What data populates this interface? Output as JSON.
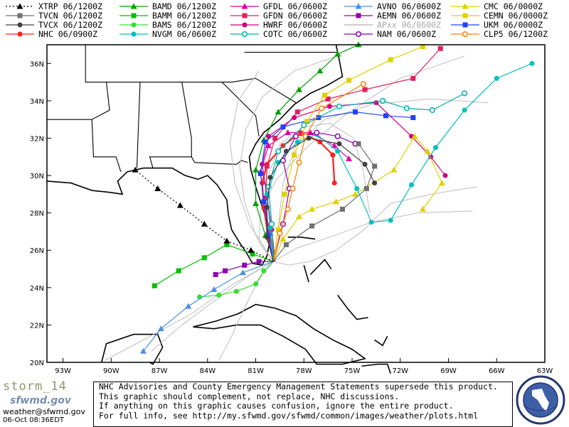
{
  "legend": [
    {
      "label": "XTRP 06/1200Z",
      "color": "#000000",
      "marker": "tri",
      "dotted": true
    },
    {
      "label": "BAMD 06/1200Z",
      "color": "#00a000",
      "marker": "tri"
    },
    {
      "label": "GFDL 06/0600Z",
      "color": "#e000a0",
      "marker": "tri"
    },
    {
      "label": "AVNO 06/0600Z",
      "color": "#4a90e2",
      "marker": "tri"
    },
    {
      "label": "CMC 06/0000Z",
      "color": "#e0d000",
      "marker": "tri"
    },
    {
      "label": "TVCN 06/1200Z",
      "color": "#707070",
      "marker": "sq"
    },
    {
      "label": "BAMM 06/1200Z",
      "color": "#00c000",
      "marker": "sq"
    },
    {
      "label": "GFDN 06/0600Z",
      "color": "#e02060",
      "marker": "sq"
    },
    {
      "label": "AEMN 06/0600Z",
      "color": "#9000b0",
      "marker": "sq"
    },
    {
      "label": "CEMN 06/0000Z",
      "color": "#e0d000",
      "marker": "sq"
    },
    {
      "label": "TVCX 06/1200Z",
      "color": "#404040",
      "marker": "circ"
    },
    {
      "label": "BAMS 06/1200Z",
      "color": "#30e030",
      "marker": "circ"
    },
    {
      "label": "HWRF 06/0600Z",
      "color": "#d00080",
      "marker": "circ"
    },
    {
      "label": "APxx 06/0600Z",
      "color": "#b0b0b0",
      "marker": "none"
    },
    {
      "label": "UKM 06/0000Z",
      "color": "#2040ff",
      "marker": "sq"
    },
    {
      "label": "NHC 06/0900Z",
      "color": "#ff2020",
      "marker": "circ"
    },
    {
      "label": "NVGM 06/0600Z",
      "color": "#00c0c0",
      "marker": "circ"
    },
    {
      "label": "COTC 06/0600Z",
      "color": "#00b0b0",
      "marker": "ocirc"
    },
    {
      "label": "NAM 06/0600Z",
      "color": "#9000b0",
      "marker": "ocirc"
    },
    {
      "label": "CLP5 06/1200Z",
      "color": "#ff8000",
      "marker": "ocirc"
    }
  ],
  "axes": {
    "lon_labels": [
      "93W",
      "90W",
      "87W",
      "84W",
      "81W",
      "78W",
      "75W",
      "72W",
      "69W",
      "66W",
      "63W"
    ],
    "lat_labels": [
      "36N",
      "34N",
      "32N",
      "30N",
      "28N",
      "26N",
      "24N",
      "22N",
      "20N"
    ]
  },
  "branding": {
    "name": "storm_14",
    "site": "sfwmd.gov",
    "email": "weather@sfwmd.gov",
    "timestamp": "06-Oct 08:36EDT"
  },
  "disclaimer": [
    "NHC Advisories and County Emergency Management Statements supersede this product.",
    "This graphic should complement, not replace, NHC discussions.",
    "If anything on this graphic causes confusion, ignore the entire product.",
    "For full info, see  http://my.sfwmd.gov/sfwmd/common/images/weather/plots.html"
  ],
  "tracks": [
    {
      "model": "NHC",
      "color": "#ff2020",
      "marker": "circ",
      "points": [
        [
          -79.9,
          25.4
        ],
        [
          -80.2,
          26.6
        ],
        [
          -80.5,
          28.3
        ],
        [
          -80.6,
          29.6
        ],
        [
          -80.3,
          30.6
        ],
        [
          -79.3,
          31.6
        ],
        [
          -78.2,
          32.3
        ],
        [
          -77.0,
          31.8
        ],
        [
          -76.2,
          31.1
        ],
        [
          -76.1,
          29.6
        ]
      ]
    },
    {
      "model": "BAMD",
      "color": "#00a000",
      "marker": "tri",
      "points": [
        [
          -79.8,
          25.4
        ],
        [
          -80.4,
          26.8
        ],
        [
          -81.0,
          28.5
        ],
        [
          -81.0,
          30.3
        ],
        [
          -80.5,
          31.9
        ],
        [
          -79.6,
          33.4
        ],
        [
          -78.3,
          34.6
        ],
        [
          -77.0,
          35.6
        ],
        [
          -75.9,
          36.5
        ],
        [
          -74.6,
          37.0
        ]
      ]
    },
    {
      "model": "BAMM",
      "color": "#00c000",
      "marker": "sq",
      "points": [
        [
          -79.9,
          25.4
        ],
        [
          -81.2,
          25.8
        ],
        [
          -82.8,
          26.3
        ],
        [
          -84.2,
          25.6
        ],
        [
          -85.8,
          24.9
        ],
        [
          -87.3,
          24.1
        ]
      ]
    },
    {
      "model": "BAMS",
      "color": "#30e030",
      "marker": "circ",
      "points": [
        [
          -79.9,
          25.4
        ],
        [
          -80.5,
          24.9
        ],
        [
          -81.0,
          24.2
        ],
        [
          -82.2,
          23.8
        ],
        [
          -83.3,
          23.6
        ],
        [
          -84.5,
          23.5
        ]
      ]
    },
    {
      "model": "GFDL",
      "color": "#e000a0",
      "marker": "tri",
      "points": [
        [
          -79.8,
          25.4
        ],
        [
          -80.1,
          26.9
        ],
        [
          -80.5,
          28.6
        ],
        [
          -80.7,
          30.2
        ],
        [
          -80.2,
          31.6
        ],
        [
          -79.0,
          32.3
        ],
        [
          -77.6,
          32.3
        ],
        [
          -76.1,
          31.6
        ],
        [
          -75.2,
          30.9
        ]
      ]
    },
    {
      "model": "GFDN",
      "color": "#e02060",
      "marker": "sq",
      "points": [
        [
          -79.8,
          25.4
        ],
        [
          -80.2,
          27.0
        ],
        [
          -80.4,
          28.8
        ],
        [
          -80.3,
          30.5
        ],
        [
          -79.8,
          32.0
        ],
        [
          -78.4,
          33.4
        ],
        [
          -76.5,
          34.1
        ],
        [
          -74.2,
          34.6
        ],
        [
          -71.2,
          35.2
        ],
        [
          -69.5,
          36.8
        ]
      ]
    },
    {
      "model": "HWRF",
      "color": "#d00080",
      "marker": "circ",
      "points": [
        [
          -79.8,
          25.4
        ],
        [
          -80.0,
          27.1
        ],
        [
          -80.3,
          28.9
        ],
        [
          -80.6,
          30.6
        ],
        [
          -80.2,
          32.1
        ],
        [
          -78.6,
          33.1
        ],
        [
          -76.4,
          33.7
        ],
        [
          -73.5,
          33.9
        ],
        [
          -71.3,
          32.1
        ],
        [
          -70.1,
          31.0
        ],
        [
          -69.2,
          30.0
        ]
      ]
    },
    {
      "model": "AVNO",
      "color": "#4a90e2",
      "marker": "tri",
      "points": [
        [
          -79.9,
          25.4
        ],
        [
          -81.8,
          24.8
        ],
        [
          -83.6,
          23.9
        ],
        [
          -85.2,
          23.0
        ],
        [
          -86.9,
          21.8
        ],
        [
          -88.0,
          20.6
        ]
      ]
    },
    {
      "model": "AEMN",
      "color": "#9000b0",
      "marker": "sq",
      "points": [
        [
          -79.9,
          25.4
        ],
        [
          -80.8,
          25.4
        ],
        [
          -81.7,
          25.2
        ],
        [
          -82.9,
          24.9
        ],
        [
          -83.5,
          24.7
        ]
      ]
    },
    {
      "model": "UKM",
      "color": "#2040ff",
      "marker": "sq",
      "points": [
        [
          -79.9,
          25.4
        ],
        [
          -80.2,
          26.8
        ],
        [
          -80.5,
          28.6
        ],
        [
          -80.7,
          30.1
        ],
        [
          -80.4,
          31.8
        ],
        [
          -79.3,
          32.6
        ],
        [
          -77.1,
          33.1
        ],
        [
          -74.8,
          33.4
        ],
        [
          -72.9,
          33.2
        ],
        [
          -71.2,
          33.1
        ]
      ]
    },
    {
      "model": "CMC",
      "color": "#e0d000",
      "marker": "tri",
      "points": [
        [
          -79.9,
          25.4
        ],
        [
          -79.3,
          26.6
        ],
        [
          -78.3,
          27.8
        ],
        [
          -77.5,
          28.2
        ],
        [
          -76.0,
          28.6
        ],
        [
          -74.8,
          29.0
        ],
        [
          -72.4,
          30.3
        ],
        [
          -71.1,
          32.1
        ],
        [
          -70.3,
          31.3
        ],
        [
          -69.4,
          29.6
        ],
        [
          -70.6,
          28.2
        ]
      ]
    },
    {
      "model": "CEMN",
      "color": "#e0d000",
      "marker": "sq",
      "points": [
        [
          -79.9,
          25.4
        ],
        [
          -79.6,
          27.1
        ],
        [
          -79.2,
          29.0
        ],
        [
          -78.6,
          31.1
        ],
        [
          -77.8,
          32.9
        ],
        [
          -76.7,
          34.3
        ],
        [
          -75.2,
          35.1
        ],
        [
          -72.6,
          36.2
        ],
        [
          -70.6,
          36.9
        ]
      ]
    },
    {
      "model": "NVGM",
      "color": "#00c0c0",
      "marker": "circ",
      "points": [
        [
          -79.9,
          25.4
        ],
        [
          -80.1,
          27.2
        ],
        [
          -80.3,
          29.0
        ],
        [
          -79.6,
          30.7
        ],
        [
          -78.4,
          31.8
        ],
        [
          -77.2,
          32.2
        ],
        [
          -75.9,
          31.3
        ],
        [
          -74.7,
          29.3
        ],
        [
          -73.8,
          27.5
        ],
        [
          -72.6,
          27.6
        ],
        [
          -71.3,
          29.5
        ],
        [
          -69.8,
          31.5
        ],
        [
          -68.0,
          33.5
        ],
        [
          -66.0,
          35.2
        ],
        [
          -63.8,
          36.0
        ]
      ]
    },
    {
      "model": "COTC",
      "color": "#00b0b0",
      "marker": "ocirc",
      "points": [
        [
          -79.9,
          25.4
        ],
        [
          -80.0,
          27.4
        ],
        [
          -80.2,
          29.4
        ],
        [
          -79.6,
          31.3
        ],
        [
          -78.0,
          32.7
        ],
        [
          -75.8,
          33.7
        ],
        [
          -73.1,
          34.0
        ],
        [
          -71.6,
          33.6
        ],
        [
          -70.0,
          33.5
        ],
        [
          -68.0,
          34.4
        ]
      ]
    },
    {
      "model": "NAM",
      "color": "#9000b0",
      "marker": "ocirc",
      "points": [
        [
          -79.9,
          25.4
        ],
        [
          -79.3,
          27.4
        ],
        [
          -78.9,
          29.3
        ],
        [
          -79.3,
          30.8
        ],
        [
          -78.5,
          32.1
        ],
        [
          -77.2,
          32.3
        ],
        [
          -75.9,
          32.1
        ],
        [
          -74.8,
          31.7
        ]
      ]
    },
    {
      "model": "CLP5",
      "color": "#ff8000",
      "marker": "ocirc",
      "points": [
        [
          -79.9,
          25.4
        ],
        [
          -79.5,
          26.9
        ],
        [
          -79.0,
          28.2
        ],
        [
          -78.7,
          29.3
        ],
        [
          -78.3,
          30.7
        ],
        [
          -77.9,
          32.1
        ],
        [
          -76.9,
          33.6
        ],
        [
          -74.3,
          34.9
        ]
      ]
    },
    {
      "model": "TVCN",
      "color": "#707070",
      "marker": "sq",
      "points": [
        [
          -79.9,
          25.4
        ],
        [
          -79.1,
          26.3
        ],
        [
          -77.5,
          27.3
        ],
        [
          -75.6,
          28.2
        ],
        [
          -74.1,
          29.3
        ],
        [
          -73.6,
          30.5
        ],
        [
          -74.6,
          31.7
        ]
      ]
    },
    {
      "model": "TVCX",
      "color": "#404040",
      "marker": "circ",
      "points": [
        [
          -79.9,
          25.4
        ],
        [
          -80.3,
          26.7
        ],
        [
          -80.3,
          28.3
        ],
        [
          -80.1,
          29.9
        ],
        [
          -79.1,
          31.3
        ],
        [
          -77.7,
          32.0
        ],
        [
          -75.8,
          31.7
        ],
        [
          -74.2,
          30.6
        ],
        [
          -73.6,
          29.6
        ]
      ]
    },
    {
      "model": "XTRP",
      "color": "#000000",
      "marker": "tri",
      "points": [
        [
          -79.9,
          25.4
        ],
        [
          -81.3,
          26.0
        ],
        [
          -82.8,
          26.5
        ],
        [
          -84.2,
          27.4
        ],
        [
          -85.7,
          28.4
        ],
        [
          -87.1,
          29.3
        ],
        [
          -88.5,
          30.3
        ]
      ]
    }
  ],
  "ensemble_tracks": [
    [
      [
        -79.9,
        25.4
      ],
      [
        -81.5,
        24.6
      ],
      [
        -83.4,
        23.4
      ],
      [
        -85.6,
        22.0
      ],
      [
        -87.5,
        20.6
      ]
    ],
    [
      [
        -79.9,
        25.4
      ],
      [
        -82.4,
        24.2
      ],
      [
        -85.0,
        22.6
      ],
      [
        -88.0,
        21.2
      ],
      [
        -90.4,
        20.1
      ]
    ],
    [
      [
        -79.9,
        25.4
      ],
      [
        -81.0,
        26.8
      ],
      [
        -81.7,
        28.6
      ],
      [
        -82.0,
        30.5
      ],
      [
        -81.6,
        32.5
      ],
      [
        -80.6,
        34.2
      ],
      [
        -78.6,
        35.6
      ],
      [
        -75.6,
        36.5
      ]
    ],
    [
      [
        -79.9,
        25.4
      ],
      [
        -81.4,
        27.4
      ],
      [
        -82.3,
        29.6
      ],
      [
        -82.6,
        31.8
      ],
      [
        -82.1,
        34.0
      ],
      [
        -80.8,
        35.6
      ]
    ],
    [
      [
        -79.9,
        25.4
      ],
      [
        -78.5,
        26.1
      ],
      [
        -76.4,
        26.7
      ],
      [
        -73.8,
        27.5
      ],
      [
        -70.9,
        28.0
      ],
      [
        -67.5,
        28.1
      ]
    ],
    [
      [
        -79.9,
        25.4
      ],
      [
        -79.6,
        27.2
      ],
      [
        -79.3,
        29.6
      ],
      [
        -78.5,
        31.6
      ],
      [
        -76.7,
        33.0
      ],
      [
        -73.8,
        33.8
      ],
      [
        -70.2,
        34.1
      ],
      [
        -66.5,
        33.9
      ]
    ],
    [
      [
        -79.9,
        25.4
      ],
      [
        -80.8,
        26.4
      ],
      [
        -80.7,
        28.1
      ],
      [
        -79.7,
        29.8
      ],
      [
        -77.7,
        31.6
      ],
      [
        -75.5,
        33.2
      ],
      [
        -72.0,
        35.2
      ],
      [
        -68.0,
        36.4
      ]
    ],
    [
      [
        -79.9,
        25.4
      ],
      [
        -79.0,
        25.2
      ],
      [
        -77.6,
        25.4
      ],
      [
        -76.0,
        26.0
      ],
      [
        -74.4,
        27.0
      ],
      [
        -72.6,
        28.5
      ],
      [
        -70.1,
        29.0
      ],
      [
        -67.2,
        29.4
      ]
    ],
    [
      [
        -79.9,
        25.4
      ],
      [
        -80.9,
        24.3
      ],
      [
        -81.7,
        22.9
      ],
      [
        -82.5,
        21.4
      ],
      [
        -83.3,
        20.1
      ]
    ],
    [
      [
        -79.9,
        25.4
      ],
      [
        -80.4,
        27.6
      ],
      [
        -80.3,
        29.8
      ],
      [
        -79.5,
        31.7
      ],
      [
        -78.0,
        32.6
      ],
      [
        -76.4,
        32.8
      ],
      [
        -74.9,
        32.0
      ],
      [
        -74.3,
        30.2
      ],
      [
        -73.9,
        28.0
      ]
    ]
  ]
}
